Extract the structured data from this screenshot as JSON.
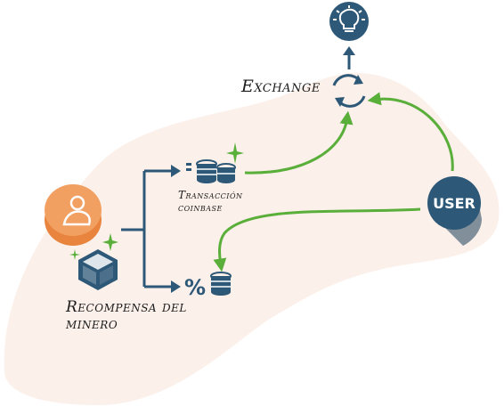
{
  "exchange": {
    "label": "Exchange",
    "icon": "exchange-refresh-icon"
  },
  "idea": {
    "icon": "lightbulb-icon"
  },
  "user": {
    "label": "USER",
    "icon": "user-circle-icon"
  },
  "coinbase": {
    "line1": "Transacción",
    "line2": "coinbase",
    "icon": "coin-stack-icon"
  },
  "fee": {
    "icon": "percent-coins-icon"
  },
  "reward": {
    "line1": "Recompensa del",
    "line2": "minero",
    "icon": "cube-icon"
  },
  "miner": {
    "icon": "miner-avatar-icon"
  },
  "colors": {
    "navy": "#2d5877",
    "green": "#5aae3a",
    "orange": "#f2a062",
    "blob": "#fbf0ea"
  }
}
